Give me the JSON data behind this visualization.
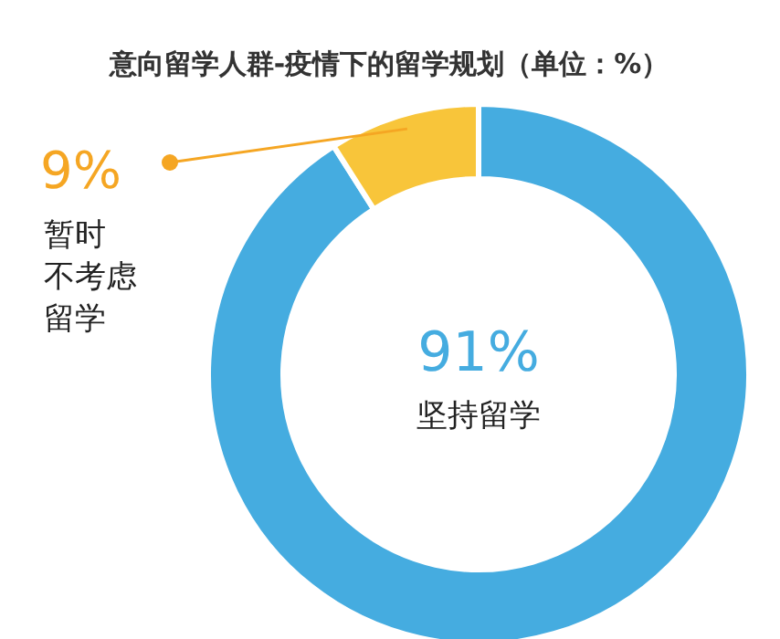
{
  "chart_data": {
    "type": "donut",
    "title": "意向留学人群-疫情下的留学规划（单位：%）",
    "categories": [
      "坚持留学",
      "暂时不考虑留学"
    ],
    "values": [
      91,
      9
    ],
    "value_labels": [
      "91%",
      "9%"
    ],
    "colors": [
      "#45ace0",
      "#f8c53a"
    ]
  }
}
